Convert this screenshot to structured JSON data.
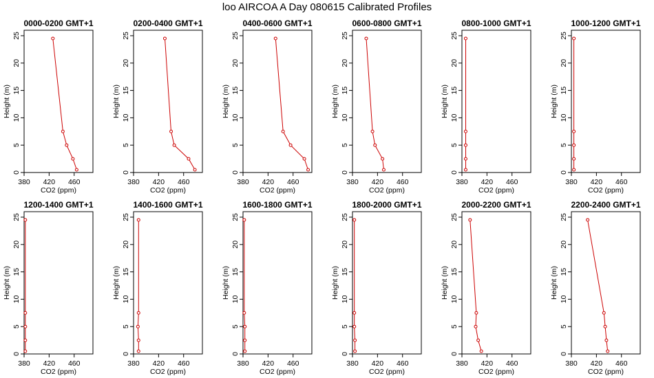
{
  "header": {
    "title": "loo AIRCOA A  Day 080615  Calibrated Profiles"
  },
  "chart_data": [
    {
      "type": "line",
      "title": "0000-0200 GMT+1",
      "xlabel": "CO2 (ppm)",
      "ylabel": "Height (m)",
      "xlim": [
        380,
        490
      ],
      "ylim": [
        0,
        26
      ],
      "xticks": [
        380,
        420,
        460
      ],
      "yticks": [
        0,
        5,
        10,
        15,
        20,
        25
      ],
      "color": "#cc0000",
      "series": [
        {
          "x": [
            464,
            458,
            448,
            442,
            426
          ],
          "y": [
            0.5,
            2.5,
            5,
            7.5,
            24.5
          ]
        }
      ]
    },
    {
      "type": "line",
      "title": "0200-0400 GMT+1",
      "xlabel": "CO2 (ppm)",
      "ylabel": "Height (m)",
      "xlim": [
        380,
        490
      ],
      "ylim": [
        0,
        26
      ],
      "xticks": [
        380,
        420,
        460
      ],
      "yticks": [
        0,
        5,
        10,
        15,
        20,
        25
      ],
      "color": "#cc0000",
      "series": [
        {
          "x": [
            478,
            468,
            445,
            440,
            430
          ],
          "y": [
            0.5,
            2.5,
            5,
            7.5,
            24.5
          ]
        }
      ]
    },
    {
      "type": "line",
      "title": "0400-0600 GMT+1",
      "xlabel": "CO2 (ppm)",
      "ylabel": "Height (m)",
      "xlim": [
        380,
        490
      ],
      "ylim": [
        0,
        26
      ],
      "xticks": [
        380,
        420,
        460
      ],
      "yticks": [
        0,
        5,
        10,
        15,
        20,
        25
      ],
      "color": "#cc0000",
      "series": [
        {
          "x": [
            484,
            478,
            456,
            444,
            432
          ],
          "y": [
            0.5,
            2.5,
            5,
            7.5,
            24.5
          ]
        }
      ]
    },
    {
      "type": "line",
      "title": "0600-0800 GMT+1",
      "xlabel": "CO2 (ppm)",
      "ylabel": "Height (m)",
      "xlim": [
        380,
        490
      ],
      "ylim": [
        0,
        26
      ],
      "xticks": [
        380,
        420,
        460
      ],
      "yticks": [
        0,
        5,
        10,
        15,
        20,
        25
      ],
      "color": "#cc0000",
      "series": [
        {
          "x": [
            430,
            428,
            416,
            412,
            402
          ],
          "y": [
            0.5,
            2.5,
            5,
            7.5,
            24.5
          ]
        }
      ]
    },
    {
      "type": "line",
      "title": "0800-1000 GMT+1",
      "xlabel": "CO2 (ppm)",
      "ylabel": "Height (m)",
      "xlim": [
        380,
        490
      ],
      "ylim": [
        0,
        26
      ],
      "xticks": [
        380,
        420,
        460
      ],
      "yticks": [
        0,
        5,
        10,
        15,
        20,
        25
      ],
      "color": "#cc0000",
      "series": [
        {
          "x": [
            386,
            386,
            386,
            386,
            386
          ],
          "y": [
            0.5,
            2.5,
            5,
            7.5,
            24.5
          ]
        }
      ]
    },
    {
      "type": "line",
      "title": "1000-1200 GMT+1",
      "xlabel": "CO2 (ppm)",
      "ylabel": "Height (m)",
      "xlim": [
        380,
        490
      ],
      "ylim": [
        0,
        26
      ],
      "xticks": [
        380,
        420,
        460
      ],
      "yticks": [
        0,
        5,
        10,
        15,
        20,
        25
      ],
      "color": "#cc0000",
      "series": [
        {
          "x": [
            384,
            384,
            384,
            384,
            384
          ],
          "y": [
            0.5,
            2.5,
            5,
            7.5,
            24.5
          ]
        }
      ]
    },
    {
      "type": "line",
      "title": "1200-1400 GMT+1",
      "xlabel": "CO2 (ppm)",
      "ylabel": "Height (m)",
      "xlim": [
        380,
        490
      ],
      "ylim": [
        0,
        26
      ],
      "xticks": [
        380,
        420,
        460
      ],
      "yticks": [
        0,
        5,
        10,
        15,
        20,
        25
      ],
      "color": "#cc0000",
      "series": [
        {
          "x": [
            382,
            382,
            382,
            382,
            382
          ],
          "y": [
            0.5,
            2.5,
            5,
            7.5,
            24.5
          ]
        }
      ]
    },
    {
      "type": "line",
      "title": "1400-1600 GMT+1",
      "xlabel": "CO2 (ppm)",
      "ylabel": "Height (m)",
      "xlim": [
        380,
        490
      ],
      "ylim": [
        0,
        26
      ],
      "xticks": [
        380,
        420,
        460
      ],
      "yticks": [
        0,
        5,
        10,
        15,
        20,
        25
      ],
      "color": "#cc0000",
      "series": [
        {
          "x": [
            388,
            388,
            387,
            388,
            388
          ],
          "y": [
            0.5,
            2.5,
            5,
            7.5,
            24.5
          ]
        }
      ]
    },
    {
      "type": "line",
      "title": "1600-1800 GMT+1",
      "xlabel": "CO2 (ppm)",
      "ylabel": "Height (m)",
      "xlim": [
        380,
        490
      ],
      "ylim": [
        0,
        26
      ],
      "xticks": [
        380,
        420,
        460
      ],
      "yticks": [
        0,
        5,
        10,
        15,
        20,
        25
      ],
      "color": "#cc0000",
      "series": [
        {
          "x": [
            383,
            383,
            383,
            382,
            382
          ],
          "y": [
            0.5,
            2.5,
            5,
            7.5,
            24.5
          ]
        }
      ]
    },
    {
      "type": "line",
      "title": "1800-2000 GMT+1",
      "xlabel": "CO2 (ppm)",
      "ylabel": "Height (m)",
      "xlim": [
        380,
        490
      ],
      "ylim": [
        0,
        26
      ],
      "xticks": [
        380,
        420,
        460
      ],
      "yticks": [
        0,
        5,
        10,
        15,
        20,
        25
      ],
      "color": "#cc0000",
      "series": [
        {
          "x": [
            384,
            384,
            383,
            383,
            383
          ],
          "y": [
            0.5,
            2.5,
            5,
            7.5,
            24.5
          ]
        }
      ]
    },
    {
      "type": "line",
      "title": "2000-2200 GMT+1",
      "xlabel": "CO2 (ppm)",
      "ylabel": "Height (m)",
      "xlim": [
        380,
        490
      ],
      "ylim": [
        0,
        26
      ],
      "xticks": [
        380,
        420,
        460
      ],
      "yticks": [
        0,
        5,
        10,
        15,
        20,
        25
      ],
      "color": "#cc0000",
      "series": [
        {
          "x": [
            411,
            406,
            402,
            403,
            393
          ],
          "y": [
            0.5,
            2.5,
            5,
            7.5,
            24.5
          ]
        }
      ]
    },
    {
      "type": "line",
      "title": "2200-2400 GMT+1",
      "xlabel": "CO2 (ppm)",
      "ylabel": "Height (m)",
      "xlim": [
        380,
        490
      ],
      "ylim": [
        0,
        26
      ],
      "xticks": [
        380,
        420,
        460
      ],
      "yticks": [
        0,
        5,
        10,
        15,
        20,
        25
      ],
      "color": "#cc0000",
      "series": [
        {
          "x": [
            438,
            436,
            434,
            432,
            406
          ],
          "y": [
            0.5,
            2.5,
            5,
            7.5,
            24.5
          ]
        }
      ]
    }
  ]
}
